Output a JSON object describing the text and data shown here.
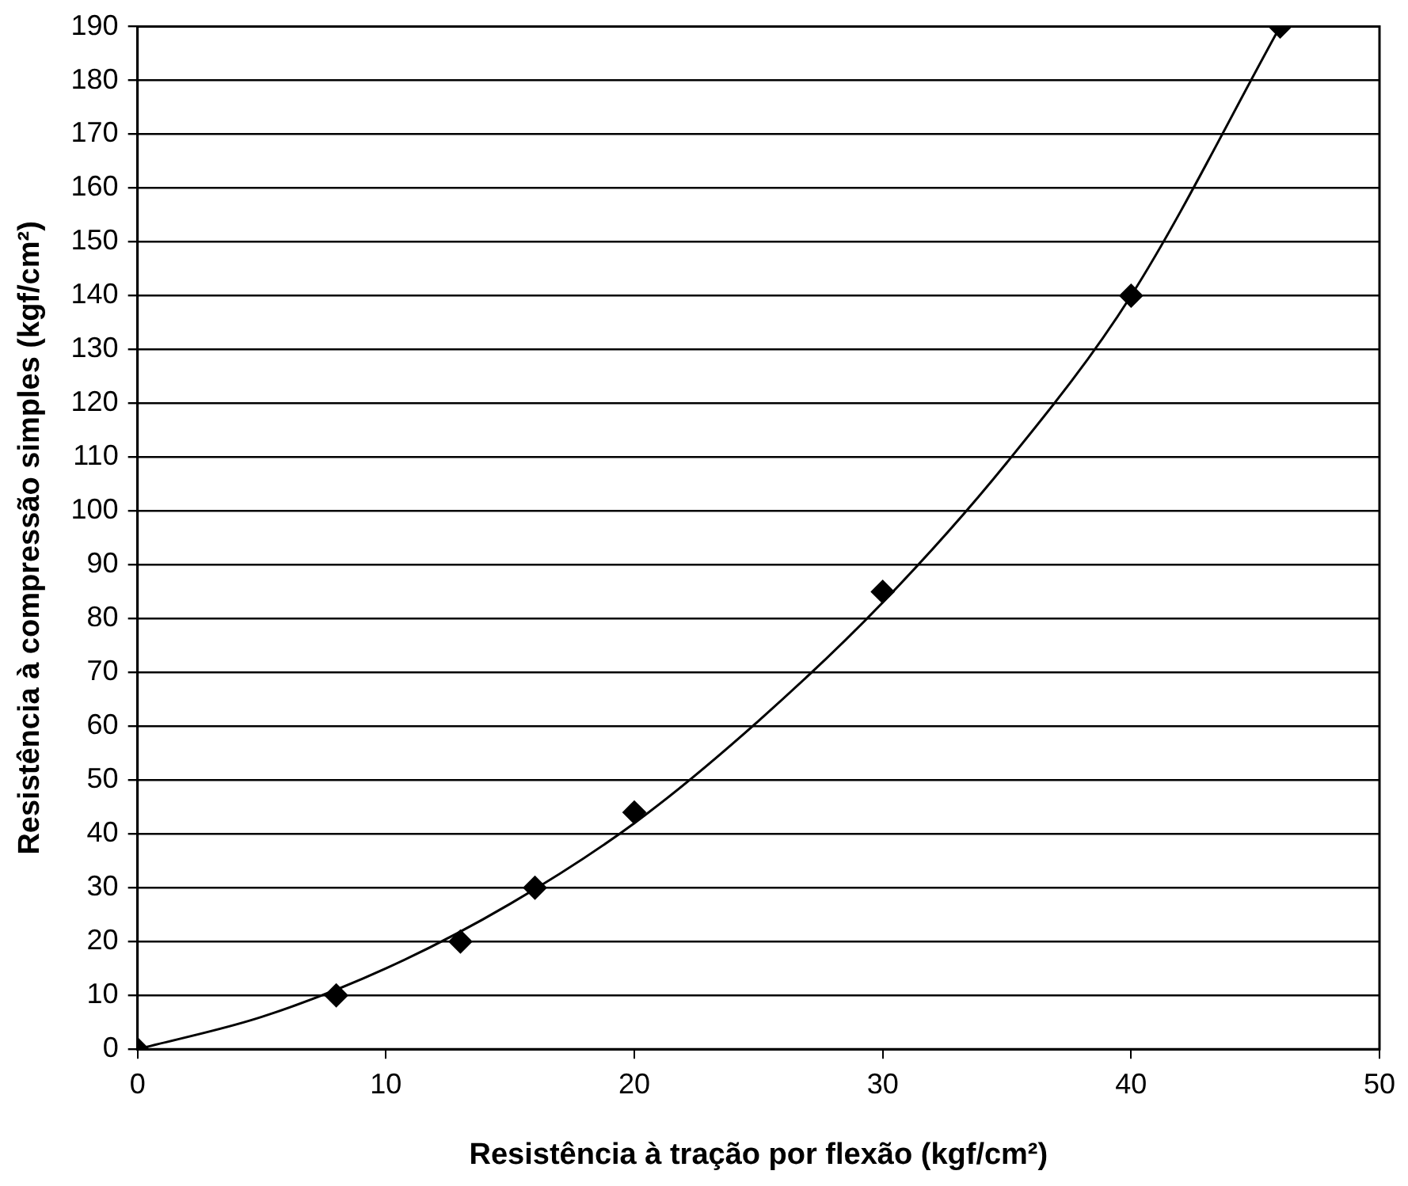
{
  "chart_data": {
    "type": "scatter",
    "xlabel": "Resistência à tração por flexão (kgf/cm²)",
    "ylabel": "Resistência à compressão simples (kgf/cm²)",
    "xlim": [
      0,
      50
    ],
    "xticks": [
      0,
      10,
      20,
      30,
      40,
      50
    ],
    "ylim": [
      0,
      190
    ],
    "yticks": [
      0,
      10,
      20,
      30,
      40,
      50,
      60,
      70,
      80,
      90,
      100,
      110,
      120,
      130,
      140,
      150,
      160,
      170,
      180,
      190
    ],
    "grid": "y",
    "legend": false,
    "marker": "diamond",
    "series": [
      {
        "color": "#000000",
        "x": [
          0,
          8,
          13,
          16,
          20,
          30,
          40,
          46
        ],
        "values": [
          0,
          10,
          20,
          30,
          44,
          85,
          140,
          190
        ]
      },
      {
        "type": "line",
        "color": "#000000",
        "marker": "none",
        "line_style": "solid",
        "x": [
          0,
          5,
          10,
          15,
          20,
          25,
          30,
          35,
          40,
          46
        ],
        "values": [
          0,
          6,
          15,
          27,
          42,
          61,
          83,
          109,
          140,
          190
        ]
      }
    ]
  }
}
